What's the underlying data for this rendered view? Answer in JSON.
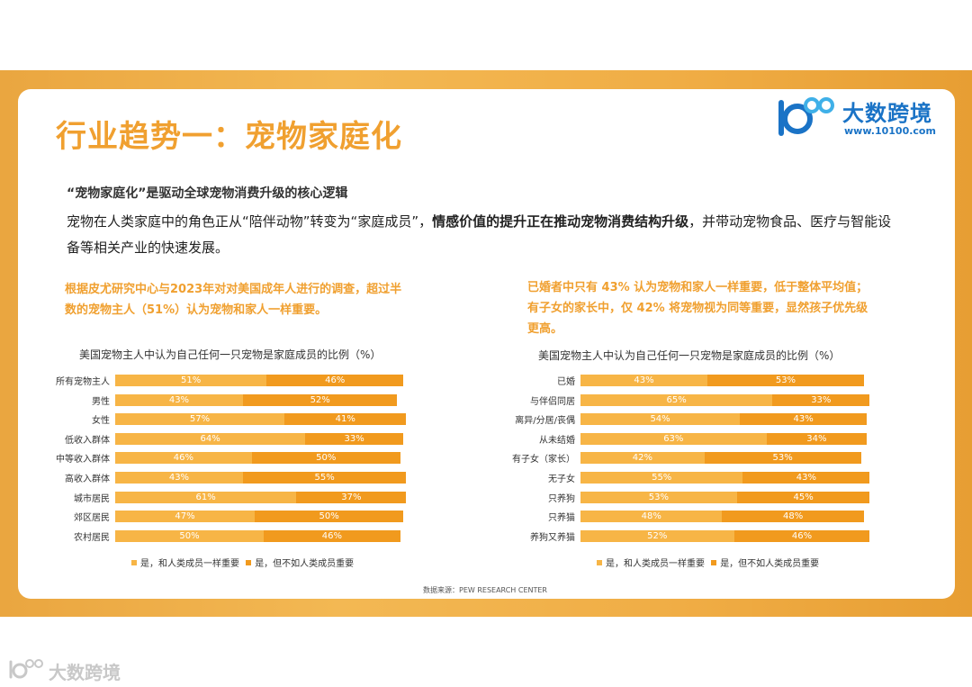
{
  "header": {
    "title": "行业趋势一：宠物家庭化",
    "logo": {
      "brand": "大数跨境",
      "url": "www.10100.com"
    }
  },
  "intro": {
    "subtitle": "“宠物家庭化”是驱动全球宠物消费升级的核心逻辑",
    "paragraph_part1": "宠物在人类家庭中的角色正从“陪伴动物”转变为“家庭成员”，",
    "paragraph_bold": "情感价值的提升正在推动宠物消费结构升级",
    "paragraph_part2": "，并带动宠物食品、医疗与智能设备等相关产业的快速发展。"
  },
  "left_note": "根据皮尤研究中心与2023年对对美国成年人进行的调查，超过半数的宠物主人（51%）认为宠物和家人一样重要。",
  "right_note": "已婚者中只有 43% 认为宠物和家人一样重要，低于整体平均值；有子女的家长中，仅 42% 将宠物视为同等重要，显然孩子优先级更高。",
  "colors": {
    "accent": "#f0a030",
    "series1": "#f7b546",
    "series2": "#f19a1e",
    "logo": "#1a73c6"
  },
  "chart_data": [
    {
      "type": "bar",
      "stacked": true,
      "orientation": "horizontal",
      "title": "美国宠物主人中认为自己任何一只宠物是家庭成员的比例（%）",
      "categories": [
        "所有宠物主人",
        "男性",
        "女性",
        "低收入群体",
        "中等收入群体",
        "高收入群体",
        "城市居民",
        "郊区居民",
        "农村居民"
      ],
      "series": [
        {
          "name": "是，和人类成员一样重要",
          "values": [
            51,
            43,
            57,
            64,
            46,
            43,
            61,
            47,
            50
          ]
        },
        {
          "name": "是，但不如人类成员重要",
          "values": [
            46,
            52,
            41,
            33,
            50,
            55,
            37,
            50,
            46
          ]
        }
      ],
      "xlim": [
        0,
        100
      ],
      "legend": "bottom"
    },
    {
      "type": "bar",
      "stacked": true,
      "orientation": "horizontal",
      "title": "美国宠物主人中认为自己任何一只宠物是家庭成员的比例（%）",
      "categories": [
        "已婚",
        "与伴侣同居",
        "离异/分居/丧偶",
        "从未结婚",
        "有子女（家长）",
        "无子女",
        "只养狗",
        "只养猫",
        "养狗又养猫"
      ],
      "series": [
        {
          "name": "是，和人类成员一样重要",
          "values": [
            43,
            65,
            54,
            63,
            42,
            55,
            53,
            48,
            52
          ]
        },
        {
          "name": "是，但不如人类成员重要",
          "values": [
            53,
            33,
            43,
            34,
            53,
            43,
            45,
            48,
            46
          ]
        }
      ],
      "xlim": [
        0,
        100
      ],
      "legend": "bottom"
    }
  ],
  "footer": {
    "source": "数据来源：PEW RESEARCH CENTER",
    "watermark": "大数跨境"
  }
}
